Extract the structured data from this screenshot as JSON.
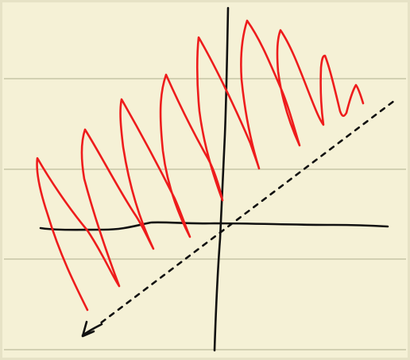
{
  "colors": {
    "paper": "#f5f1d6",
    "border": "#e6e2c6",
    "rule_lines": "#c7c5a6",
    "ink": "#111111",
    "curve": "#ee1c1c"
  },
  "icons": {
    "arrowhead": "arrow-down-left-icon"
  }
}
